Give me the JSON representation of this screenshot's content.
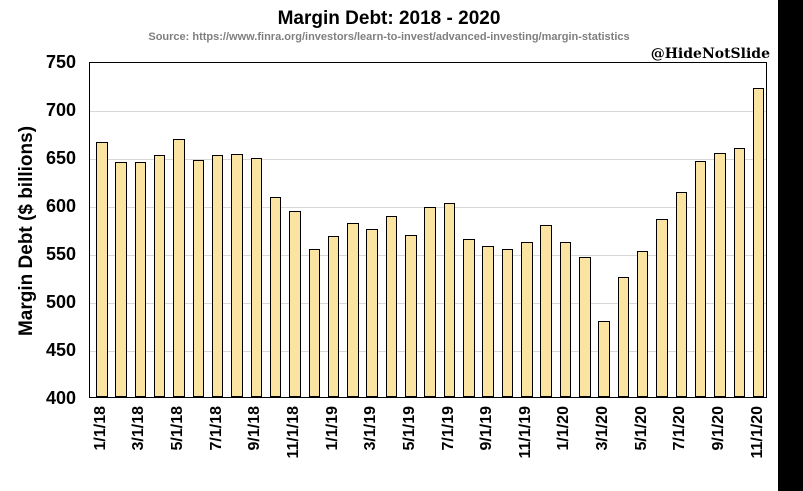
{
  "header": {
    "title": "Margin Debt: 2018 - 2020",
    "source": "Source: https://www.finra.org/investors/learn-to-invest/advanced-investing/margin-statistics",
    "watermark": "@HideNotSlide"
  },
  "chart_data": {
    "type": "bar",
    "title": "Margin Debt: 2018 - 2020",
    "xlabel": "",
    "ylabel": "Margin Debt ($ billions)",
    "ylim": [
      400,
      750
    ],
    "yticks": [
      400,
      450,
      500,
      550,
      600,
      650,
      700,
      750
    ],
    "grid": true,
    "legend": "none",
    "bar_color": "#fbe3a1",
    "bar_border_color": "#000000",
    "x": [
      "1/1/18",
      "2/1/18",
      "3/1/18",
      "4/1/18",
      "5/1/18",
      "6/1/18",
      "7/1/18",
      "8/1/18",
      "9/1/18",
      "10/1/18",
      "11/1/18",
      "12/1/18",
      "1/1/19",
      "2/1/19",
      "3/1/19",
      "4/1/19",
      "5/1/19",
      "6/1/19",
      "7/1/19",
      "8/1/19",
      "9/1/19",
      "10/1/19",
      "11/1/19",
      "12/1/19",
      "1/1/20",
      "2/1/20",
      "3/1/20",
      "4/1/20",
      "5/1/20",
      "6/1/20",
      "7/1/20",
      "8/1/20",
      "9/1/20",
      "10/1/20",
      "11/1/20"
    ],
    "values": [
      666,
      645,
      645,
      652,
      669,
      647,
      652,
      653,
      649,
      608,
      594,
      554,
      568,
      581,
      575,
      589,
      569,
      598,
      602,
      565,
      557,
      554,
      562,
      579,
      562,
      546,
      479,
      525,
      552,
      585,
      614,
      646,
      654,
      659,
      722
    ],
    "x_tick_labels": [
      "1/1/18",
      "3/1/18",
      "5/1/18",
      "7/1/18",
      "9/1/18",
      "11/1/18",
      "1/1/19",
      "3/1/19",
      "5/1/19",
      "7/1/19",
      "9/1/19",
      "11/1/19",
      "1/1/20",
      "3/1/20",
      "5/1/20",
      "7/1/20",
      "9/1/20",
      "11/1/20"
    ]
  }
}
